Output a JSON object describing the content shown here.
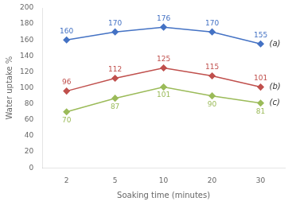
{
  "chart_data": {
    "type": "line",
    "xlabel": "Soaking time (minutes)",
    "ylabel": "Water uptake %",
    "categories": [
      "2",
      "5",
      "10",
      "20",
      "30"
    ],
    "series": [
      {
        "name": "(a)",
        "color": "#4472C4",
        "values": [
          160,
          170,
          176,
          170,
          155
        ]
      },
      {
        "name": "(b)",
        "color": "#C0504D",
        "values": [
          96,
          112,
          125,
          115,
          101
        ]
      },
      {
        "name": "(c)",
        "color": "#9BBB59",
        "values": [
          70,
          87,
          101,
          90,
          81
        ]
      }
    ],
    "ylim": [
      0,
      200
    ],
    "yticks": [
      0,
      20,
      40,
      60,
      80,
      100,
      120,
      140,
      160,
      180,
      200
    ],
    "marker": "diamond",
    "grid": false,
    "data_labels": true
  }
}
